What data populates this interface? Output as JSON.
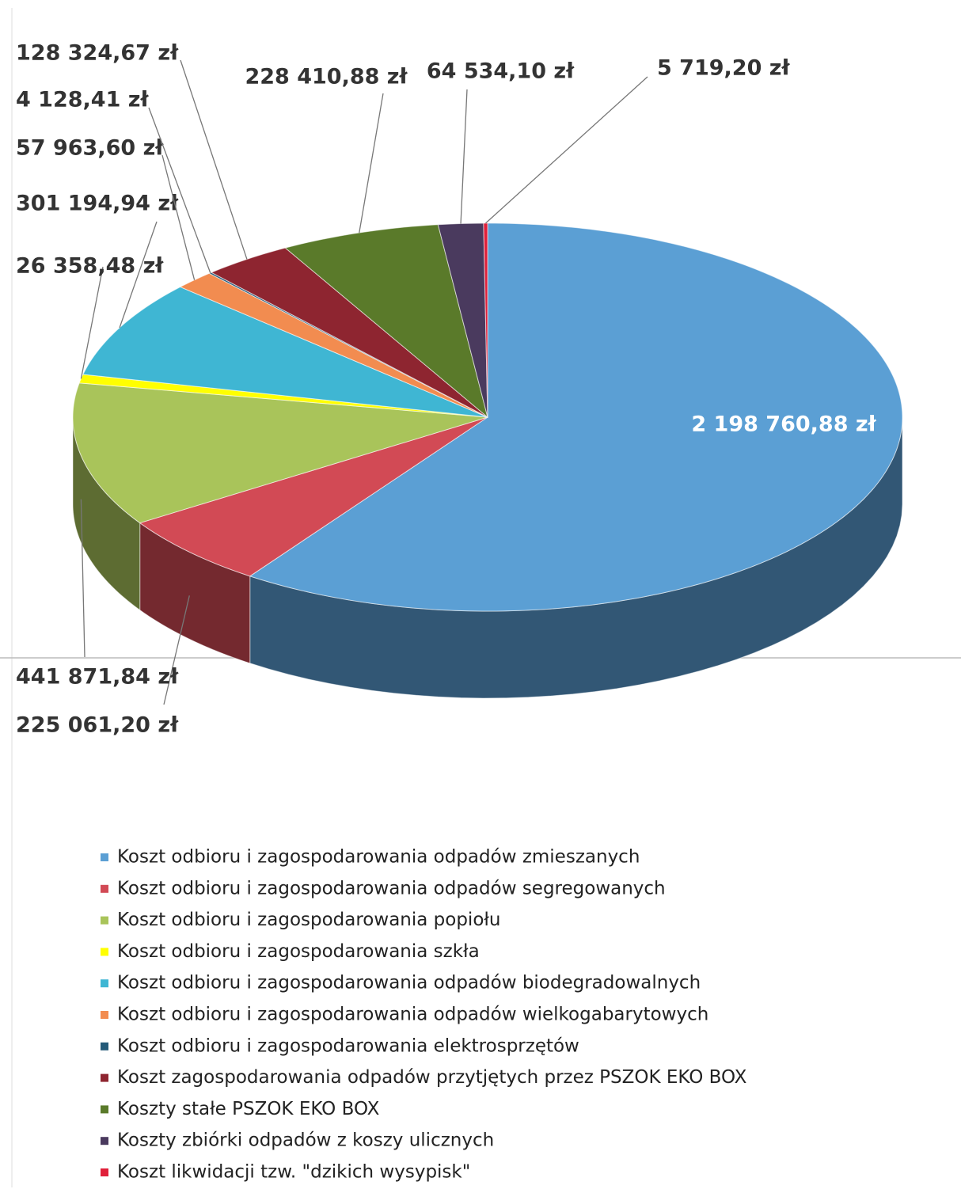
{
  "chart_data": {
    "type": "pie",
    "categories": [
      "Koszt odbioru i zagospodarowania odpadów zmieszanych",
      "Koszt odbioru i zagospodarowania odpadów segregowanych",
      "Koszt odbioru i zagospodarowania popiołu",
      "Koszt odbioru i zagospodarowania szkła",
      "Koszt odbioru i zagospodarowania odpadów biodegradowalnych",
      "Koszt odbioru i zagospodarowania odpadów wielkogabarytowych",
      "Koszt odbioru i zagospodarowania elektrosprzętów",
      "Koszt zagospodarowania odpadów przytjętych przez PSZOK EKO BOX",
      "Koszty stałe PSZOK EKO BOX",
      "Koszty zbiórki odpadów z koszy ulicznych",
      "Koszt likwidacji tzw. \"dzikich wysypisk\""
    ],
    "values": [
      2198760.88,
      225061.2,
      441871.84,
      26358.48,
      301194.94,
      57963.6,
      4128.41,
      128324.67,
      228410.88,
      64534.1,
      5719.2
    ],
    "value_labels": [
      "2 198 760,88 zł",
      "225 061,20 zł",
      "441 871,84 zł",
      "26 358,48 zł",
      "301 194,94 zł",
      "57 963,60 zł",
      "4 128,41 zł",
      "128 324,67 zł",
      "228 410,88 zł",
      "64 534,10 zł",
      "5 719,20 zł"
    ],
    "colors": [
      "#5b9fd4",
      "#d24a55",
      "#a9c45a",
      "#ffff00",
      "#3fb6d3",
      "#f28c50",
      "#245a78",
      "#8e2530",
      "#5a7a2a",
      "#4a3a5e",
      "#e0203a"
    ],
    "legend": "bottom"
  }
}
